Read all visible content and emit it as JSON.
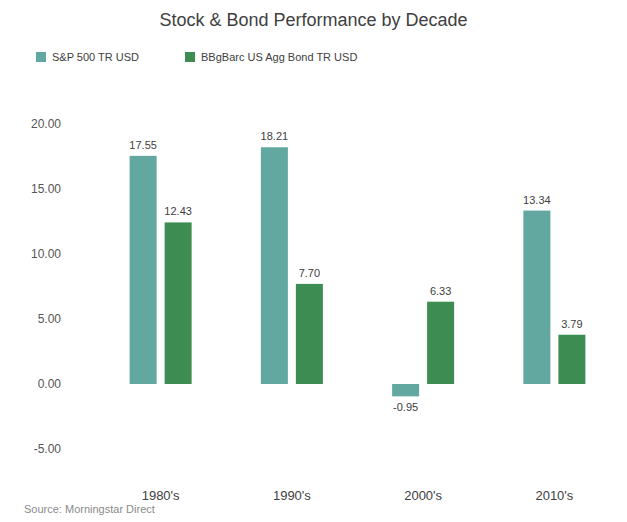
{
  "chart_data": {
    "type": "bar",
    "title": "Stock & Bond Performance by Decade",
    "source": "Source: Morningstar Direct",
    "categories": [
      "1980's",
      "1990's",
      "2000's",
      "2010's"
    ],
    "series": [
      {
        "name": "S&P 500 TR USD",
        "color": "#62a8a0",
        "values": [
          17.55,
          18.21,
          -0.95,
          13.34
        ],
        "value_labels": [
          "17.55",
          "18.21",
          "-0.95",
          "13.34"
        ]
      },
      {
        "name": "BBgBarc US Agg Bond TR USD",
        "color": "#3d8c52",
        "values": [
          12.43,
          7.7,
          6.33,
          3.79
        ],
        "value_labels": [
          "12.43",
          "7.70",
          "6.33",
          "3.79"
        ]
      }
    ],
    "ylim": [
      -5,
      20
    ],
    "yticks": [
      {
        "value": -5,
        "label": "-5.00"
      },
      {
        "value": 0,
        "label": "0.00"
      },
      {
        "value": 5,
        "label": "5.00"
      },
      {
        "value": 10,
        "label": "10.00"
      },
      {
        "value": 15,
        "label": "15.00"
      },
      {
        "value": 20,
        "label": "20.00"
      }
    ],
    "grid": false,
    "legend": "top-left",
    "data_labels": true
  }
}
